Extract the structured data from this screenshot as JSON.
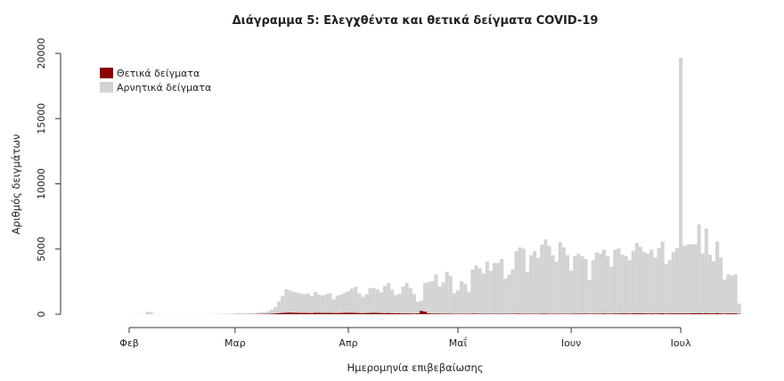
{
  "chart_data": {
    "type": "bar",
    "stacked": true,
    "title": "Διάγραμμα 5: Ελεγχθέντα και θετικά δείγματα COVID-19",
    "xlabel": "Ημερομηνία επιβεβαίωσης",
    "ylabel": "Αριθμός δειγμάτων",
    "ylim": [
      0,
      20000
    ],
    "yticks": [
      "0",
      "5000",
      "10000",
      "15000",
      "20000"
    ],
    "xticks": [
      "Φεβ",
      "Μαρ",
      "Απρ",
      "Μαΐ",
      "Ιουν",
      "Ιουλ"
    ],
    "grid": false,
    "legend_position": "top-left",
    "colors": {
      "positive": "#8b0000",
      "negative": "#d3d3d3"
    },
    "series": [
      {
        "name": "Θετικά δείγματα",
        "key": "positive"
      },
      {
        "name": "Αρνητικά δείγματα",
        "key": "negative"
      }
    ],
    "daily": [
      {
        "month": "Φεβ",
        "negative": [
          10,
          10,
          10,
          10,
          20,
          200,
          150,
          20,
          10,
          10,
          10,
          10,
          10,
          10,
          10,
          10,
          10,
          10,
          10,
          10,
          10,
          10,
          10,
          20,
          20,
          20,
          30,
          30,
          40
        ],
        "positive": [
          0,
          0,
          0,
          0,
          0,
          0,
          0,
          0,
          0,
          0,
          0,
          0,
          0,
          0,
          0,
          0,
          0,
          0,
          0,
          0,
          0,
          0,
          0,
          0,
          0,
          0,
          0,
          0,
          0
        ]
      },
      {
        "month": "Μαρ",
        "negative": [
          60,
          80,
          70,
          50,
          60,
          40,
          100,
          150,
          120,
          200,
          300,
          500,
          900,
          1300,
          1800,
          1700,
          1600,
          1550,
          1500,
          1450,
          1500,
          1300,
          1600,
          1400,
          1350,
          1450,
          1500,
          1050,
          1350,
          1400,
          1550
        ],
        "positive": [
          2,
          3,
          5,
          5,
          8,
          10,
          15,
          20,
          25,
          30,
          40,
          60,
          80,
          100,
          120,
          130,
          120,
          110,
          100,
          100,
          90,
          90,
          110,
          110,
          100,
          100,
          100,
          90,
          90,
          100,
          110
        ]
      },
      {
        "month": "Απρ",
        "negative": [
          1650,
          1850,
          2000,
          1500,
          1250,
          1450,
          1900,
          1900,
          1800,
          1600,
          2100,
          2300,
          1800,
          1400,
          1500,
          2050,
          2350,
          1950,
          1500,
          900,
          800,
          2200,
          2400,
          2500,
          3000,
          2100,
          2400,
          3200,
          2900,
          1600
        ],
        "positive": [
          110,
          120,
          100,
          90,
          80,
          90,
          100,
          110,
          100,
          90,
          80,
          90,
          80,
          70,
          70,
          60,
          60,
          60,
          50,
          60,
          250,
          200,
          60,
          50,
          50,
          40,
          40,
          40,
          40,
          30
        ]
      },
      {
        "month": "Μαΐ",
        "negative": [
          1800,
          2500,
          2300,
          1700,
          3400,
          3700,
          3500,
          3100,
          4000,
          3300,
          3900,
          3900,
          4200,
          2700,
          3000,
          3400,
          4800,
          5100,
          5000,
          3200,
          4500,
          4800,
          4300,
          5300,
          5700,
          5200,
          4500,
          4000,
          5500,
          5100,
          4500
        ],
        "positive": [
          30,
          30,
          30,
          30,
          40,
          40,
          30,
          30,
          30,
          30,
          30,
          30,
          30,
          30,
          30,
          30,
          40,
          40,
          30,
          30,
          30,
          30,
          30,
          40,
          40,
          30,
          30,
          30,
          30,
          30,
          30
        ]
      },
      {
        "month": "Ιουν",
        "negative": [
          3300,
          4400,
          4600,
          4400,
          4200,
          2600,
          4100,
          4700,
          4600,
          4900,
          4400,
          3600,
          4900,
          5000,
          4500,
          4400,
          4100,
          4800,
          5400,
          5100,
          4700,
          4600,
          4900,
          4300,
          5000,
          5500,
          3800,
          4100,
          4700,
          5000
        ],
        "positive": [
          30,
          40,
          40,
          40,
          40,
          30,
          40,
          40,
          40,
          50,
          40,
          40,
          50,
          50,
          60,
          60,
          50,
          60,
          70,
          60,
          60,
          50,
          60,
          50,
          60,
          70,
          50,
          60,
          60,
          60
        ]
      },
      {
        "month": "Ιουλ",
        "negative": [
          19600,
          5200,
          5300,
          5300,
          5300,
          6800,
          4600,
          6500,
          4500,
          4000,
          5500,
          4300,
          2600,
          3000,
          2900,
          3000,
          800
        ],
        "positive": [
          60,
          60,
          60,
          70,
          70,
          80,
          60,
          80,
          60,
          60,
          80,
          60,
          50,
          60,
          60,
          60,
          20
        ]
      }
    ]
  }
}
